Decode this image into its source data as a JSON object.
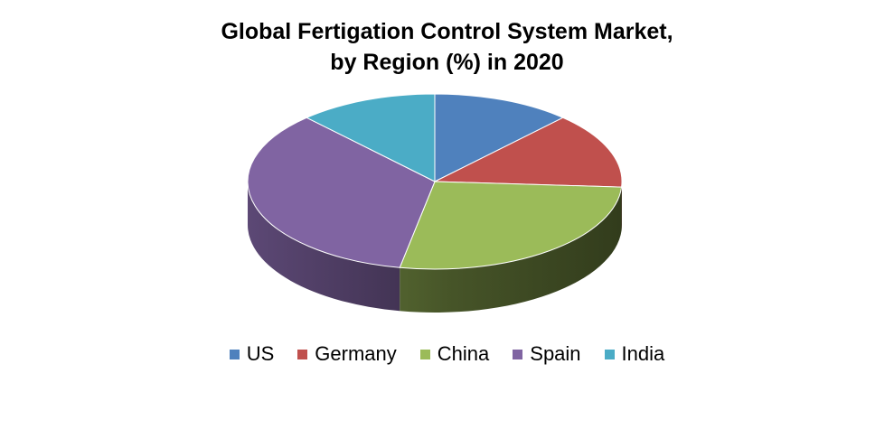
{
  "chart_data": {
    "type": "pie",
    "style": "3d",
    "title_line1": "Global Fertigation Control System Market,",
    "title_line2": "by Region (%) in 2020",
    "legend_position": "bottom",
    "series": [
      {
        "name": "US",
        "value": 12,
        "color": "#4F81BD"
      },
      {
        "name": "Germany",
        "value": 14,
        "color": "#C0504D"
      },
      {
        "name": "China",
        "value": 27,
        "color": "#9BBB59"
      },
      {
        "name": "Spain",
        "value": 35,
        "color": "#8064A2"
      },
      {
        "name": "India",
        "value": 12,
        "color": "#4BACC6"
      }
    ]
  }
}
